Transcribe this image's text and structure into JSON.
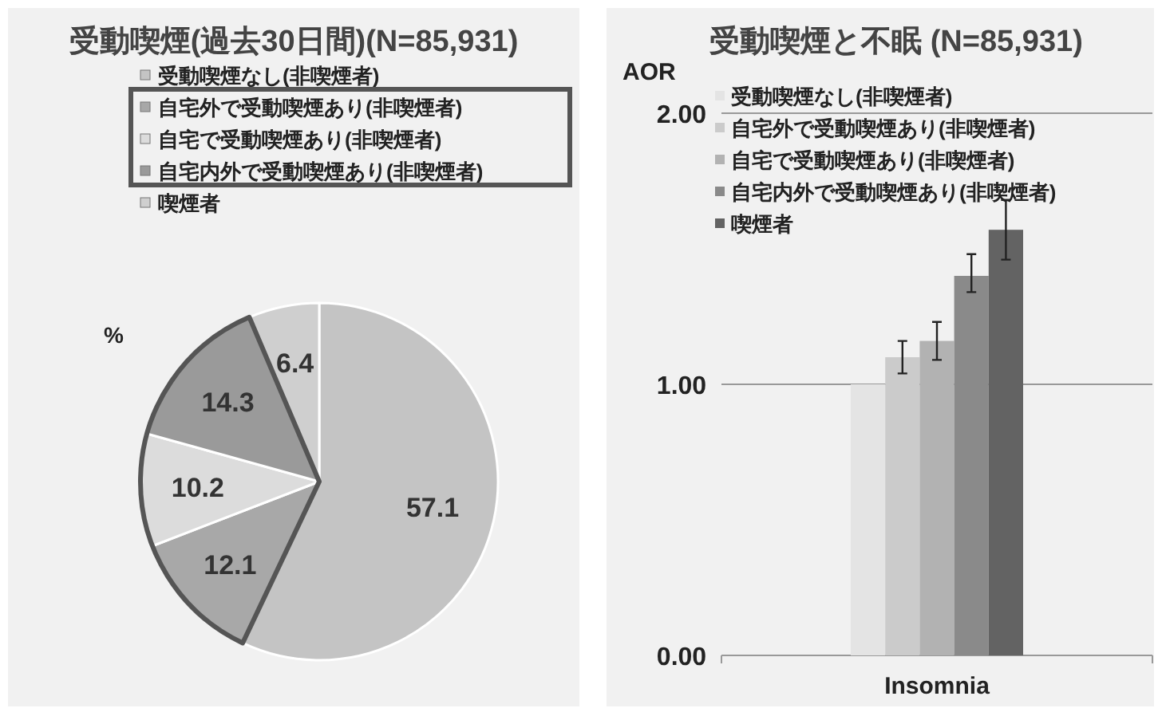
{
  "chart_data": [
    {
      "type": "pie",
      "title": "受動喫煙(過去30日間)(N=85,931)",
      "categories": [
        "受動喫煙なし(非喫煙者)",
        "自宅外で受動喫煙あり(非喫煙者)",
        "自宅で受動喫煙あり(非喫煙者)",
        "自宅内外で受動喫煙あり(非喫煙者)",
        "喫煙者"
      ],
      "values": [
        57.1,
        12.1,
        10.2,
        14.3,
        6.4
      ],
      "colors": [
        "#c4c4c4",
        "#a8a8a8",
        "#dcdcdc",
        "#9a9a9a",
        "#cfcfcf"
      ],
      "data_labels": true,
      "legend": "top",
      "annotations": [
        "%"
      ]
    },
    {
      "type": "bar",
      "title": "受動喫煙と不眠 (N=85,931)",
      "ylabel": "AOR",
      "categories": [
        "Insomnia"
      ],
      "series": [
        {
          "name": "受動喫煙なし(非喫煙者)",
          "color": "#e4e4e4",
          "values": [
            1.0
          ],
          "errors": [
            null
          ]
        },
        {
          "name": "自宅外で受動喫煙あり(非喫煙者)",
          "color": "#cbcbcb",
          "values": [
            1.1
          ],
          "errors": [
            [
              1.04,
              1.16
            ]
          ]
        },
        {
          "name": "自宅で受動喫煙あり(非喫煙者)",
          "color": "#b2b2b2",
          "values": [
            1.16
          ],
          "errors": [
            [
              1.09,
              1.23
            ]
          ]
        },
        {
          "name": "自宅内外で受動喫煙あり(非喫煙者)",
          "color": "#8a8a8a",
          "values": [
            1.4
          ],
          "errors": [
            [
              1.34,
              1.48
            ]
          ]
        },
        {
          "name": "喫煙者",
          "color": "#636363",
          "values": [
            1.57
          ],
          "errors": [
            [
              1.46,
              1.68
            ]
          ]
        }
      ],
      "ylim": [
        0,
        2
      ],
      "yticks": [
        {
          "value": 0,
          "label": "0.00"
        },
        {
          "value": 1,
          "label": "1.00"
        },
        {
          "value": 2,
          "label": "2.00"
        }
      ],
      "grid": "y",
      "legend": "top left"
    }
  ]
}
